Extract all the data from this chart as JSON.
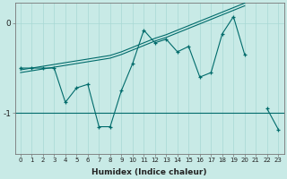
{
  "xlabel": "Humidex (Indice chaleur)",
  "background_color": "#c8eae6",
  "line_color": "#006b6b",
  "grid_color": "#a8d8d4",
  "x_values": [
    0,
    1,
    2,
    3,
    4,
    5,
    6,
    7,
    8,
    9,
    10,
    11,
    12,
    13,
    14,
    15,
    16,
    17,
    18,
    19,
    20,
    21,
    22,
    23
  ],
  "y_main": [
    -0.5,
    -0.5,
    -0.5,
    -0.5,
    -0.88,
    -0.72,
    -0.68,
    -1.15,
    -1.15,
    -0.75,
    -0.45,
    -0.08,
    -0.22,
    -0.18,
    -0.32,
    -0.26,
    -0.6,
    -0.55,
    -0.12,
    0.07,
    -0.35,
    null,
    -0.95,
    -1.18
  ],
  "y_trend_upper": [
    -0.52,
    -0.5,
    -0.48,
    -0.46,
    -0.44,
    -0.42,
    -0.4,
    -0.38,
    -0.36,
    -0.32,
    -0.27,
    -0.22,
    -0.17,
    -0.13,
    -0.08,
    -0.03,
    0.02,
    0.07,
    0.12,
    0.17,
    0.22,
    null,
    null,
    null
  ],
  "y_trend_lower": [
    -0.55,
    -0.53,
    -0.51,
    -0.49,
    -0.47,
    -0.45,
    -0.43,
    -0.41,
    -0.39,
    -0.35,
    -0.3,
    -0.25,
    -0.2,
    -0.16,
    -0.11,
    -0.06,
    -0.01,
    0.04,
    0.09,
    0.14,
    0.19,
    null,
    null,
    null
  ],
  "hline_y": -1.0,
  "ylim": [
    -1.45,
    0.22
  ],
  "yticks": [
    0,
    -1
  ],
  "xticks": [
    0,
    1,
    2,
    3,
    4,
    5,
    6,
    7,
    8,
    9,
    10,
    11,
    12,
    13,
    14,
    15,
    16,
    17,
    18,
    19,
    20,
    21,
    22,
    23
  ]
}
